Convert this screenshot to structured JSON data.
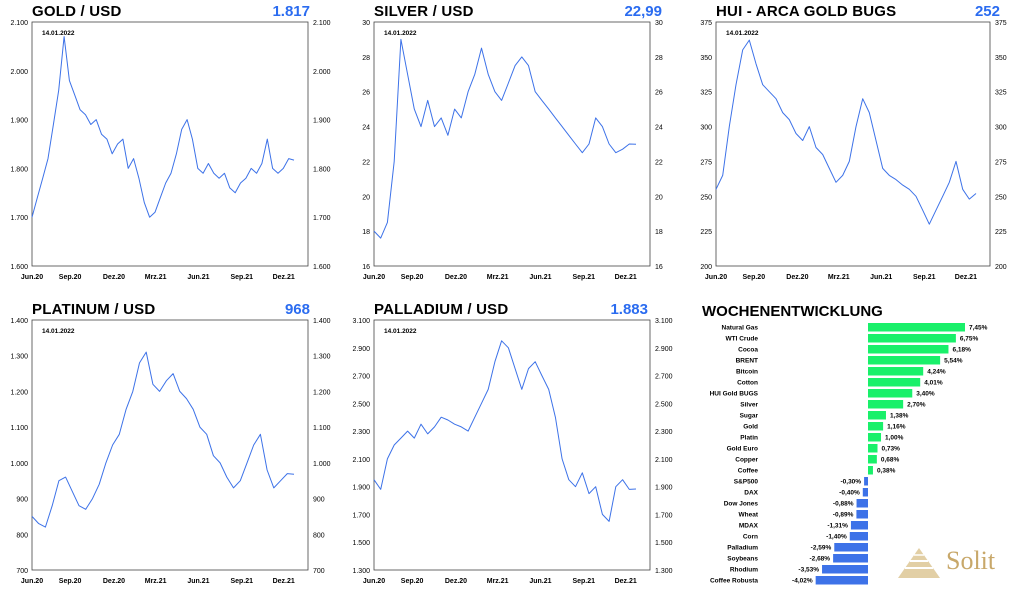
{
  "colors": {
    "line": "#3d72e8",
    "positive": "#19f06a",
    "negative": "#3d72e8",
    "value": "#2b6cf0"
  },
  "panels": [
    {
      "id": "gold",
      "title": "GOLD / USD",
      "value": "1.817",
      "date_label": "14.01.2022",
      "y_ticks": [
        "2.100",
        "2.000",
        "1.900",
        "1.800",
        "1.700",
        "1.600"
      ],
      "y_min": 1600,
      "y_max": 2100,
      "x_ticks": [
        "Jun.20",
        "Sep.20",
        "Dez.20",
        "Mrz.21",
        "Jun.21",
        "Sep.21",
        "Dez.21"
      ],
      "series": [
        1700,
        1740,
        1780,
        1820,
        1890,
        1960,
        2070,
        1980,
        1950,
        1920,
        1910,
        1890,
        1900,
        1870,
        1860,
        1830,
        1850,
        1860,
        1800,
        1820,
        1780,
        1730,
        1700,
        1710,
        1740,
        1770,
        1790,
        1830,
        1880,
        1900,
        1860,
        1800,
        1790,
        1810,
        1790,
        1780,
        1790,
        1760,
        1750,
        1770,
        1780,
        1800,
        1790,
        1810,
        1860,
        1800,
        1790,
        1800,
        1820,
        1817
      ]
    },
    {
      "id": "silver",
      "title": "SILVER / USD",
      "value": "22,99",
      "date_label": "14.01.2022",
      "y_ticks": [
        "30",
        "28",
        "26",
        "24",
        "22",
        "20",
        "18",
        "16"
      ],
      "y_min": 16,
      "y_max": 30,
      "x_ticks": [
        "Jun.20",
        "Sep.20",
        "Dez.20",
        "Mrz.21",
        "Jun.21",
        "Sep.21",
        "Dez.21"
      ],
      "series": [
        18,
        17.6,
        18.5,
        22,
        29,
        27,
        25,
        24,
        25.5,
        24,
        24.5,
        23.5,
        25,
        24.5,
        26,
        27,
        28.5,
        27,
        26,
        25.5,
        26.5,
        27.5,
        28,
        27.5,
        26,
        25.5,
        25,
        24.5,
        24,
        23.5,
        23,
        22.5,
        23,
        24.5,
        24,
        23,
        22.5,
        22.7,
        23,
        22.99
      ]
    },
    {
      "id": "hui",
      "title": "HUI - ARCA GOLD BUGS",
      "value": "252",
      "date_label": "14.01.2022",
      "y_ticks": [
        "375",
        "350",
        "325",
        "300",
        "275",
        "250",
        "225",
        "200"
      ],
      "y_min": 200,
      "y_max": 375,
      "x_ticks": [
        "Jun.20",
        "Sep.20",
        "Dez.20",
        "Mrz.21",
        "Jun.21",
        "Sep.21",
        "Dez.21"
      ],
      "series": [
        255,
        265,
        300,
        330,
        355,
        362,
        345,
        330,
        325,
        320,
        310,
        305,
        295,
        290,
        300,
        285,
        280,
        270,
        260,
        265,
        275,
        300,
        320,
        310,
        290,
        270,
        265,
        262,
        258,
        255,
        250,
        240,
        230,
        240,
        250,
        260,
        275,
        255,
        248,
        252
      ]
    },
    {
      "id": "platinum",
      "title": "PLATINUM / USD",
      "value": "968",
      "date_label": "14.01.2022",
      "y_ticks": [
        "1.400",
        "1.300",
        "1.200",
        "1.100",
        "1.000",
        "900",
        "800",
        "700"
      ],
      "y_min": 700,
      "y_max": 1400,
      "x_ticks": [
        "Jun.20",
        "Sep.20",
        "Dez.20",
        "Mrz.21",
        "Jun.21",
        "Sep.21",
        "Dez.21"
      ],
      "series": [
        850,
        830,
        820,
        880,
        950,
        960,
        920,
        880,
        870,
        900,
        940,
        1000,
        1050,
        1080,
        1150,
        1200,
        1280,
        1310,
        1220,
        1200,
        1230,
        1250,
        1200,
        1180,
        1150,
        1100,
        1080,
        1020,
        1000,
        960,
        930,
        950,
        1000,
        1050,
        1080,
        980,
        930,
        950,
        970,
        968
      ]
    },
    {
      "id": "palladium",
      "title": "PALLADIUM / USD",
      "value": "1.883",
      "date_label": "14.01.2022",
      "y_ticks": [
        "3.100",
        "2.900",
        "2.700",
        "2.500",
        "2.300",
        "2.100",
        "1.900",
        "1.700",
        "1.500",
        "1.300"
      ],
      "y_min": 1300,
      "y_max": 3100,
      "x_ticks": [
        "Jun.20",
        "Sep.20",
        "Dez.20",
        "Mrz.21",
        "Jun.21",
        "Sep.21",
        "Dez.21"
      ],
      "series": [
        1950,
        1880,
        2100,
        2200,
        2250,
        2300,
        2250,
        2350,
        2280,
        2330,
        2400,
        2380,
        2350,
        2330,
        2300,
        2400,
        2500,
        2600,
        2800,
        2950,
        2900,
        2750,
        2600,
        2750,
        2800,
        2700,
        2600,
        2400,
        2100,
        1950,
        1900,
        2000,
        1850,
        1900,
        1700,
        1650,
        1900,
        1950,
        1880,
        1883
      ]
    }
  ],
  "weekly": {
    "title": "WOCHENENTWICKLUNG",
    "min": -4.02,
    "max": 7.45,
    "items": [
      {
        "label": "Natural Gas",
        "value": 7.45,
        "text": "7,45%"
      },
      {
        "label": "WTI Crude",
        "value": 6.75,
        "text": "6,75%"
      },
      {
        "label": "Cocoa",
        "value": 6.18,
        "text": "6,18%"
      },
      {
        "label": "BRENT",
        "value": 5.54,
        "text": "5,54%"
      },
      {
        "label": "Bitcoin",
        "value": 4.24,
        "text": "4,24%"
      },
      {
        "label": "Cotton",
        "value": 4.01,
        "text": "4,01%"
      },
      {
        "label": "HUI Gold BUGS",
        "value": 3.4,
        "text": "3,40%"
      },
      {
        "label": "Silver",
        "value": 2.7,
        "text": "2,70%"
      },
      {
        "label": "Sugar",
        "value": 1.38,
        "text": "1,38%"
      },
      {
        "label": "Gold",
        "value": 1.16,
        "text": "1,16%"
      },
      {
        "label": "Platin",
        "value": 1.0,
        "text": "1,00%"
      },
      {
        "label": "Gold Euro",
        "value": 0.73,
        "text": "0,73%"
      },
      {
        "label": "Copper",
        "value": 0.68,
        "text": "0,68%"
      },
      {
        "label": "Coffee",
        "value": 0.38,
        "text": "0,38%"
      },
      {
        "label": "S&P500",
        "value": -0.3,
        "text": "-0,30%"
      },
      {
        "label": "DAX",
        "value": -0.4,
        "text": "-0,40%"
      },
      {
        "label": "Dow Jones",
        "value": -0.88,
        "text": "-0,88%"
      },
      {
        "label": "Wheat",
        "value": -0.89,
        "text": "-0,89%"
      },
      {
        "label": "MDAX",
        "value": -1.31,
        "text": "-1,31%"
      },
      {
        "label": "Corn",
        "value": -1.4,
        "text": "-1,40%"
      },
      {
        "label": "Palladium",
        "value": -2.59,
        "text": "-2,59%"
      },
      {
        "label": "Soybeans",
        "value": -2.68,
        "text": "-2,68%"
      },
      {
        "label": "Rhodium",
        "value": -3.53,
        "text": "-3,53%"
      },
      {
        "label": "Coffee Robusta",
        "value": -4.02,
        "text": "-4,02%"
      }
    ]
  },
  "logo": {
    "text": "Solit"
  },
  "chart_data": [
    {
      "type": "line",
      "title": "GOLD / USD",
      "ylim": [
        1600,
        2100
      ]
    },
    {
      "type": "line",
      "title": "SILVER / USD",
      "ylim": [
        16,
        30
      ]
    },
    {
      "type": "line",
      "title": "HUI - ARCA GOLD BUGS",
      "ylim": [
        200,
        375
      ]
    },
    {
      "type": "line",
      "title": "PLATINUM / USD",
      "ylim": [
        700,
        1400
      ]
    },
    {
      "type": "line",
      "title": "PALLADIUM / USD",
      "ylim": [
        1300,
        3100
      ]
    },
    {
      "type": "bar",
      "title": "WOCHENENTWICKLUNG",
      "categories": [
        "Natural Gas",
        "WTI Crude",
        "Cocoa",
        "BRENT",
        "Bitcoin",
        "Cotton",
        "HUI Gold BUGS",
        "Silver",
        "Sugar",
        "Gold",
        "Platin",
        "Gold Euro",
        "Copper",
        "Coffee",
        "S&P500",
        "DAX",
        "Dow Jones",
        "Wheat",
        "MDAX",
        "Corn",
        "Palladium",
        "Soybeans",
        "Rhodium",
        "Coffee Robusta"
      ],
      "values": [
        7.45,
        6.75,
        6.18,
        5.54,
        4.24,
        4.01,
        3.4,
        2.7,
        1.38,
        1.16,
        1.0,
        0.73,
        0.68,
        0.38,
        -0.3,
        -0.4,
        -0.88,
        -0.89,
        -1.31,
        -1.4,
        -2.59,
        -2.68,
        -3.53,
        -4.02
      ]
    }
  ]
}
